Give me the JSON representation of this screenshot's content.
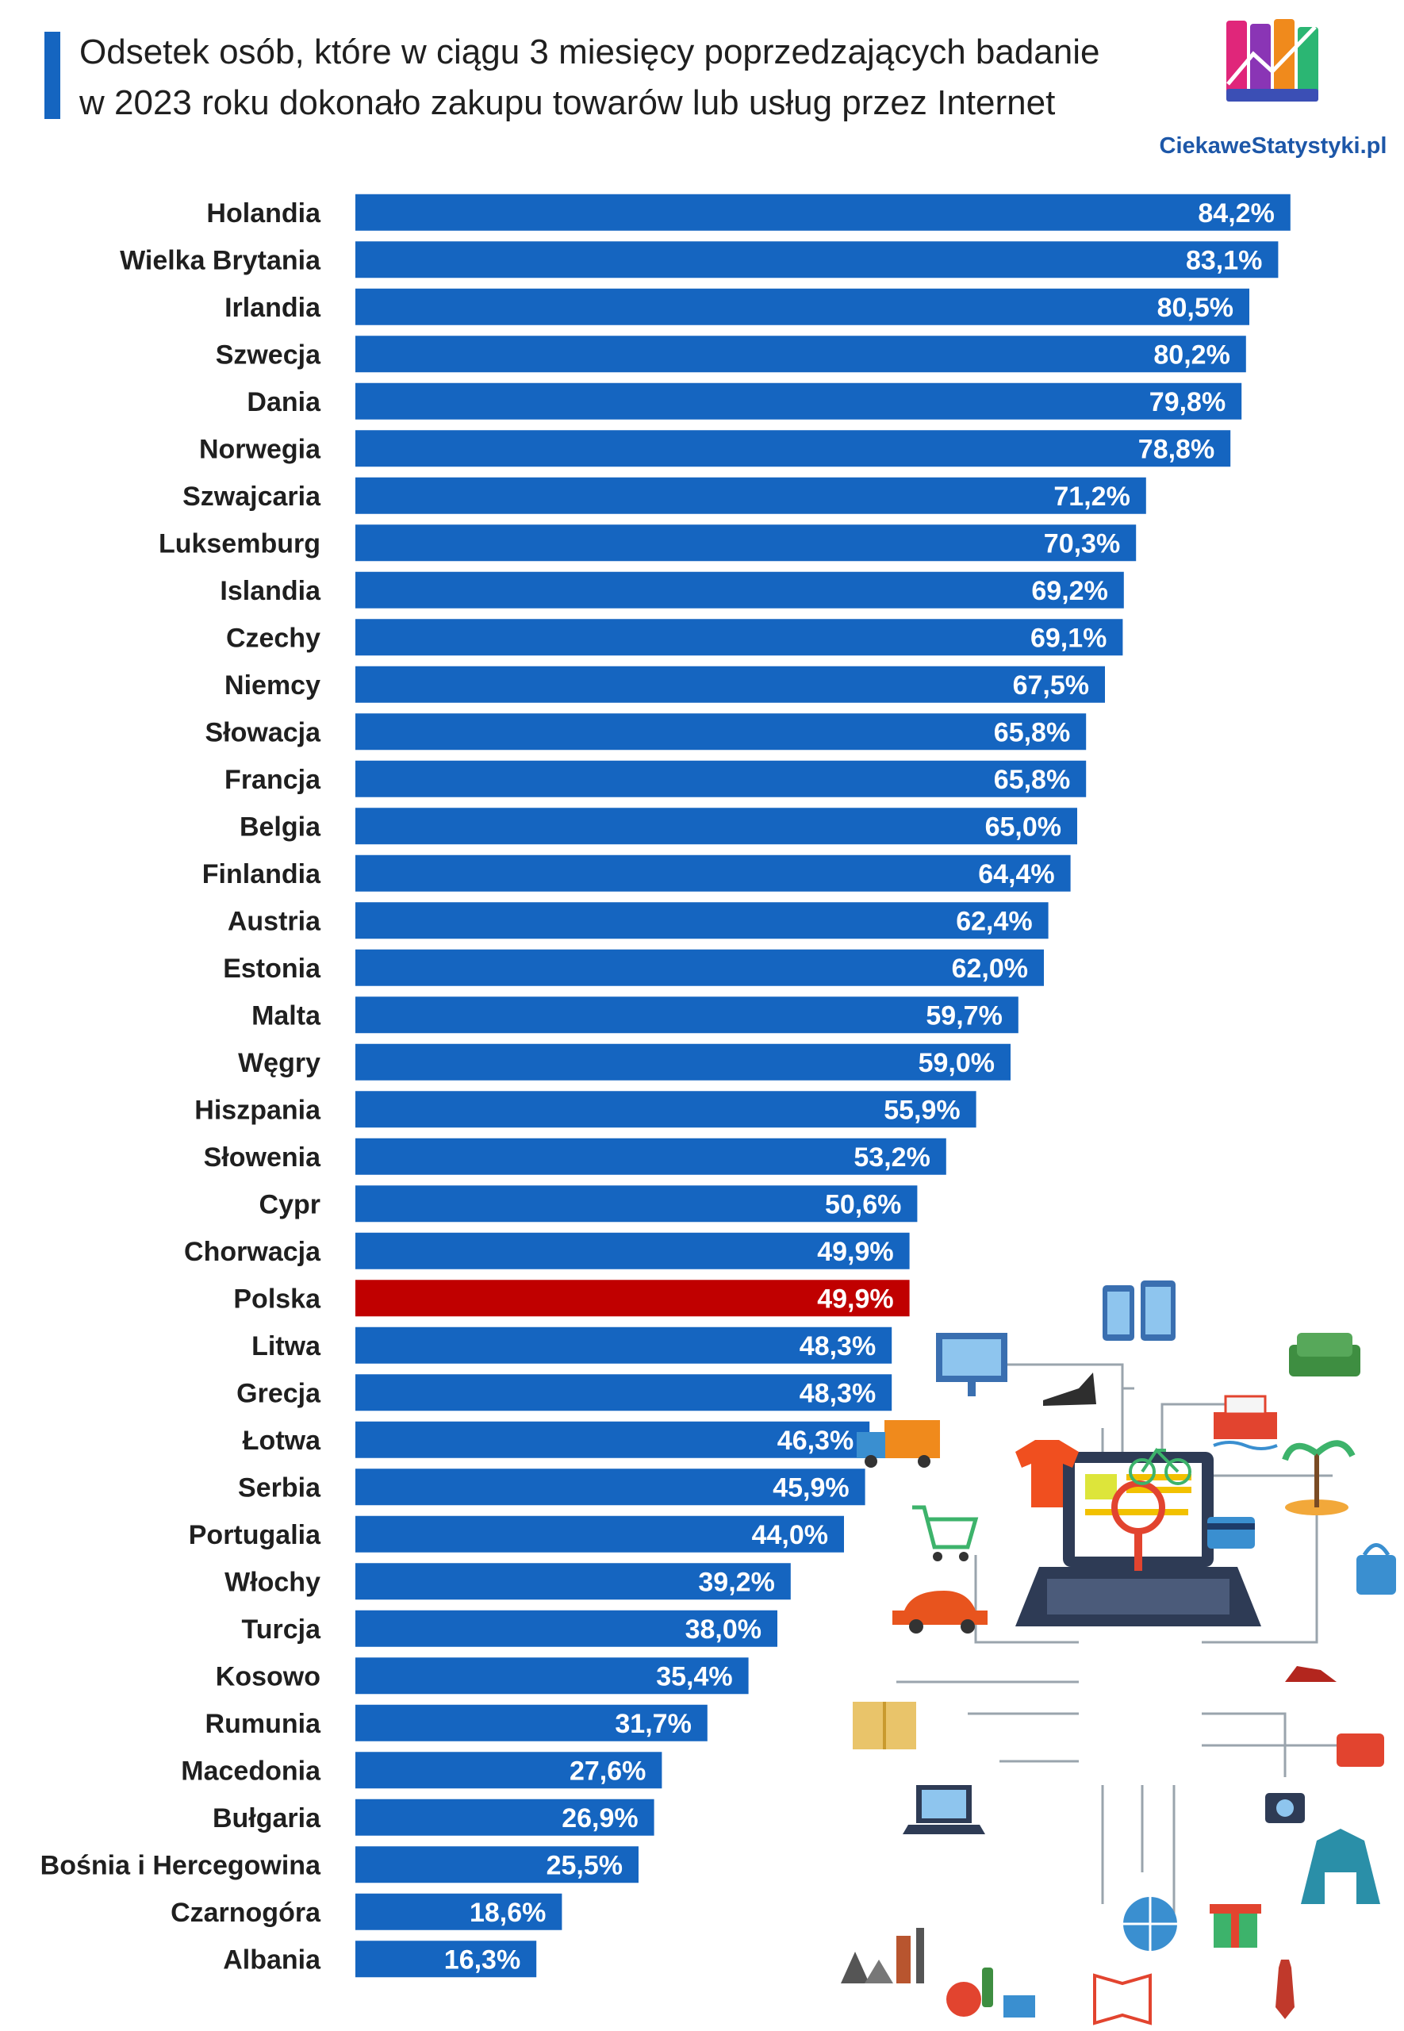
{
  "title": {
    "line1": "Odsetek osób, które w ciągu 3 miesięcy poprzedzających badanie",
    "line2": "w 2023 roku dokonało zakupu towarów lub usług przez Internet"
  },
  "logo": {
    "text": "CiekaweStatystyki.pl"
  },
  "colors": {
    "bar": "#1565c0",
    "highlight": "#c00000",
    "label": "#ffffff",
    "category": "#1f1f1f"
  },
  "chart_data": {
    "type": "bar",
    "orientation": "horizontal",
    "title": "Odsetek osób, które w ciągu 3 miesięcy poprzedzających badanie w 2023 roku dokonało zakupu towarów lub usług przez Internet",
    "unit": "%",
    "highlight_category": "Polska",
    "categories": [
      "Holandia",
      "Wielka Brytania",
      "Irlandia",
      "Szwecja",
      "Dania",
      "Norwegia",
      "Szwajcaria",
      "Luksemburg",
      "Islandia",
      "Czechy",
      "Niemcy",
      "Słowacja",
      "Francja",
      "Belgia",
      "Finlandia",
      "Austria",
      "Estonia",
      "Malta",
      "Węgry",
      "Hiszpania",
      "Słowenia",
      "Cypr",
      "Chorwacja",
      "Polska",
      "Litwa",
      "Grecja",
      "Łotwa",
      "Serbia",
      "Portugalia",
      "Włochy",
      "Turcja",
      "Kosowo",
      "Rumunia",
      "Macedonia",
      "Bułgaria",
      "Bośnia i Hercegowina",
      "Czarnogóra",
      "Albania"
    ],
    "values": [
      84.2,
      83.1,
      80.5,
      80.2,
      79.8,
      78.8,
      71.2,
      70.3,
      69.2,
      69.1,
      67.5,
      65.8,
      65.8,
      65.0,
      64.4,
      62.4,
      62.0,
      59.7,
      59.0,
      55.9,
      53.2,
      50.6,
      49.9,
      49.9,
      48.3,
      48.3,
      46.3,
      45.9,
      44.0,
      39.2,
      38.0,
      35.4,
      31.7,
      27.6,
      26.9,
      25.5,
      18.6,
      16.3
    ],
    "labels": [
      "84,2%",
      "83,1%",
      "80,5%",
      "80,2%",
      "79,8%",
      "78,8%",
      "71,2%",
      "70,3%",
      "69,2%",
      "69,1%",
      "67,5%",
      "65,8%",
      "65,8%",
      "65,0%",
      "64,4%",
      "62,4%",
      "62,0%",
      "59,7%",
      "59,0%",
      "55,9%",
      "53,2%",
      "50,6%",
      "49,9%",
      "49,9%",
      "48,3%",
      "48,3%",
      "46,3%",
      "45,9%",
      "44,0%",
      "39,2%",
      "38,0%",
      "35,4%",
      "31,7%",
      "27,6%",
      "26,9%",
      "25,5%",
      "18,6%",
      "16,3%"
    ],
    "grid": false,
    "legend": "none"
  }
}
